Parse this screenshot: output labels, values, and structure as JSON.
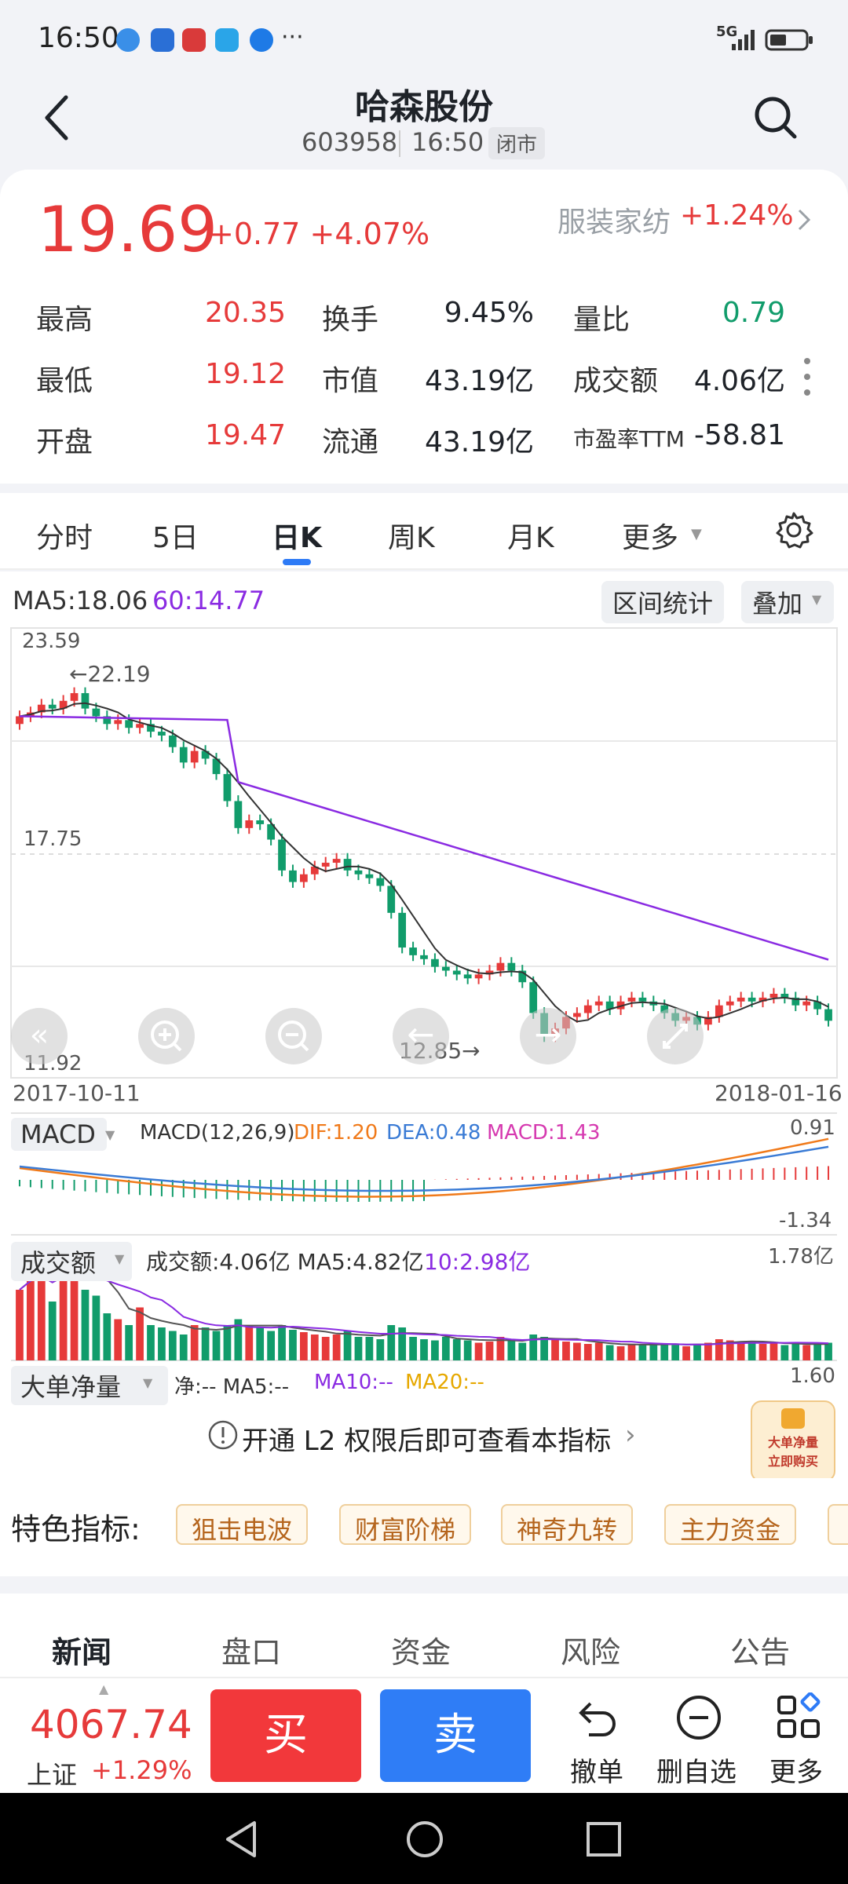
{
  "status_bar": {
    "time": "16:50",
    "net": "5G"
  },
  "header": {
    "title": "哈森股份",
    "code": "603958",
    "time": "16:50",
    "state": "闭市"
  },
  "quote": {
    "price": "19.69",
    "change": "+0.77",
    "change_pct": "+4.07%",
    "industry": "服装家纺",
    "industry_pct": "+1.24%",
    "rows": [
      [
        {
          "l": "最高",
          "v": "20.35",
          "c": "red"
        },
        {
          "l": "换手",
          "v": "9.45%",
          "c": "dark"
        },
        {
          "l": "量比",
          "v": "0.79",
          "c": "green"
        }
      ],
      [
        {
          "l": "最低",
          "v": "19.12",
          "c": "red"
        },
        {
          "l": "市值",
          "v": "43.19亿",
          "c": "dark"
        },
        {
          "l": "成交额",
          "v": "4.06亿",
          "c": "dark"
        }
      ],
      [
        {
          "l": "开盘",
          "v": "19.47",
          "c": "red"
        },
        {
          "l": "流通",
          "v": "43.19亿",
          "c": "dark"
        },
        {
          "l": "市盈率TTM",
          "v": "-58.81",
          "c": "dark"
        }
      ]
    ]
  },
  "tabs": [
    "分时",
    "5日",
    "日K",
    "周K",
    "月K",
    "更多"
  ],
  "chart": {
    "ma_line": "MA5:18.06",
    "ma60": "60:14.77",
    "range_btn": "区间统计",
    "overlay_btn": "叠加",
    "ytop": "23.59",
    "ymid": "17.75",
    "ybot": "11.92",
    "hi_label": "←22.19",
    "lo_label": "12.85→",
    "date_start": "2017-10-11",
    "date_end": "2018-01-16",
    "macd_title": "MACD",
    "macd_params": "MACD(12,26,9)",
    "dif": "DIF:1.20",
    "dea": "DEA:0.48",
    "macd": "MACD:1.43",
    "macd_top": "0.91",
    "macd_bot": "-1.34",
    "vol_title": "成交额",
    "vol_vals": "成交额:4.06亿 MA5:4.82亿",
    "vol_ma10": "10:2.98亿",
    "vol_top": "1.78亿",
    "big_title": "大单净量",
    "big_net": "净:-- MA5:--",
    "big_ma10": "MA10:--",
    "big_ma20": "MA20:--",
    "big_top": "1.60",
    "l2_text": "开通 L2 权限后即可查看本指标",
    "l2_badge1": "大单净量",
    "l2_badge2": "立即购买"
  },
  "features": {
    "label": "特色指标:",
    "items": [
      "狙击电波",
      "财富阶梯",
      "神奇九转",
      "主力资金"
    ]
  },
  "news_tabs": [
    "新闻",
    "盘口",
    "资金",
    "风险",
    "公告"
  ],
  "bottom": {
    "index_val": "4067.74",
    "index_name": "上证",
    "index_pct": "+1.29%",
    "buy": "买",
    "sell": "卖",
    "cancel": "撤单",
    "delwatch": "删自选",
    "more": "更多"
  },
  "colors": {
    "up": "#e63a3a",
    "down": "#119c6b",
    "ma60": "#8a2be2",
    "accent": "#2e7bf6"
  }
}
